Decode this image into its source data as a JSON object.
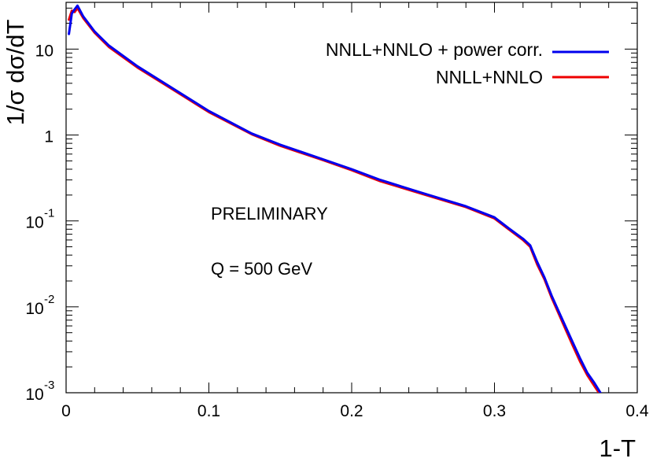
{
  "chart_data": {
    "type": "line",
    "xlabel": "1-T",
    "ylabel": "1/σ dσ/dT",
    "xlim": [
      0,
      0.4
    ],
    "ylim": [
      0.001,
      35
    ],
    "yscale": "log",
    "grid": false,
    "legend_position": "top-right",
    "x_ticks": [
      {
        "value": 0,
        "label": "0"
      },
      {
        "value": 0.1,
        "label": "0.1"
      },
      {
        "value": 0.2,
        "label": "0.2"
      },
      {
        "value": 0.3,
        "label": "0.3"
      },
      {
        "value": 0.4,
        "label": "0.4"
      }
    ],
    "y_ticks": [
      {
        "value": 10,
        "base": "10",
        "exp": ""
      },
      {
        "value": 1,
        "base": "1",
        "exp": ""
      },
      {
        "value": 0.1,
        "base": "10",
        "exp": "-1"
      },
      {
        "value": 0.01,
        "base": "10",
        "exp": "-2"
      },
      {
        "value": 0.001,
        "base": "10",
        "exp": "-3"
      }
    ],
    "annotations": [
      "PRELIMINARY",
      "Q = 500 GeV"
    ],
    "series": [
      {
        "name": "NNLL+NNLO + power corr.",
        "color": "#0000ee",
        "x": [
          0.002,
          0.004,
          0.006,
          0.008,
          0.012,
          0.02,
          0.03,
          0.05,
          0.07,
          0.1,
          0.13,
          0.15,
          0.18,
          0.2,
          0.22,
          0.25,
          0.28,
          0.3,
          0.31,
          0.32,
          0.325,
          0.33,
          0.335,
          0.34,
          0.345,
          0.35,
          0.355,
          0.36,
          0.365,
          0.37,
          0.375,
          0.38,
          0.4
        ],
        "y": [
          15,
          26,
          29,
          32,
          24,
          16,
          11,
          6.3,
          3.9,
          1.9,
          1.04,
          0.77,
          0.52,
          0.4,
          0.3,
          0.21,
          0.148,
          0.11,
          0.082,
          0.062,
          0.052,
          0.033,
          0.022,
          0.0135,
          0.0088,
          0.0058,
          0.0038,
          0.0025,
          0.0017,
          0.0013,
          0.00095,
          0.0009,
          0.0009
        ]
      },
      {
        "name": "NNLL+NNLO",
        "color": "#ee0000",
        "x": [
          0.002,
          0.004,
          0.006,
          0.008,
          0.012,
          0.02,
          0.03,
          0.05,
          0.07,
          0.1,
          0.13,
          0.15,
          0.18,
          0.2,
          0.22,
          0.25,
          0.28,
          0.3,
          0.31,
          0.32,
          0.325,
          0.33,
          0.335,
          0.34,
          0.345,
          0.35,
          0.355,
          0.36,
          0.365,
          0.37,
          0.375,
          0.378
        ],
        "y": [
          22,
          28,
          27,
          30,
          23,
          15.5,
          10.6,
          6.1,
          3.8,
          1.85,
          1.02,
          0.75,
          0.51,
          0.39,
          0.29,
          0.205,
          0.145,
          0.107,
          0.08,
          0.06,
          0.05,
          0.031,
          0.021,
          0.0128,
          0.0083,
          0.0054,
          0.0035,
          0.0023,
          0.0016,
          0.0012,
          0.0009,
          0.0009
        ]
      }
    ]
  }
}
